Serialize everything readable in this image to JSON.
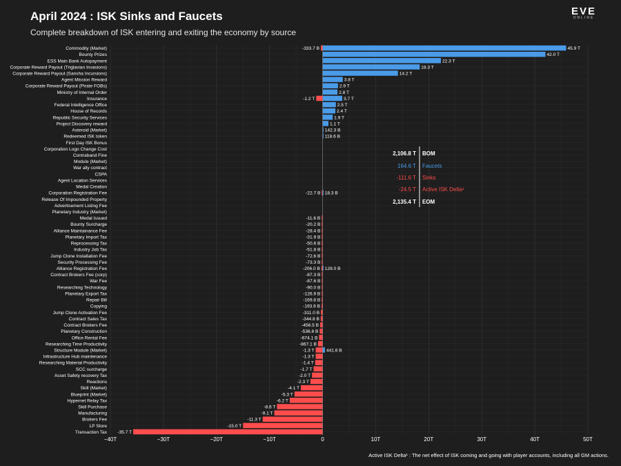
{
  "header": {
    "title": "April 2024 : ISK Sinks and Faucets",
    "subtitle": "Complete breakdown of ISK entering and exiting the economy by source",
    "logo": "EVE ONLINE"
  },
  "summary": [
    {
      "value": "2,106.8 T",
      "label": "BOM",
      "color": "#ffffff",
      "bold": true
    },
    {
      "value": "164.6 T",
      "label": "Faucets",
      "color": "#4a9be8",
      "bold": false
    },
    {
      "value": "-111.6 T",
      "label": "Sinks",
      "color": "#ff4d4d",
      "bold": false
    },
    {
      "value": "-24.5 T",
      "label": "Active ISK Delta¹",
      "color": "#ff4d4d",
      "bold": false
    },
    {
      "value": "2,135.4 T",
      "label": "EOM",
      "color": "#ffffff",
      "bold": true
    }
  ],
  "footnote": "Active ISK Delta¹ : The net effect of ISK coming and going with player accounts, including all GM actions.",
  "chart_data": {
    "type": "bar",
    "orientation": "horizontal",
    "title": "April 2024 : ISK Sinks and Faucets",
    "unit": "T",
    "xlim": [
      -40,
      50
    ],
    "xticks": [
      -40,
      -30,
      -20,
      -10,
      0,
      10,
      20,
      30,
      40,
      50
    ],
    "xtick_labels": [
      "−40T",
      "−30T",
      "−20T",
      "−10T",
      "0",
      "10T",
      "20T",
      "30T",
      "40T",
      "50T"
    ],
    "grid": true,
    "colors": {
      "faucet": "#4a9be8",
      "sink": "#ff4d4d"
    },
    "categories": [
      {
        "name": "Commodity (Market)",
        "neg": -0.3337,
        "negLabel": "-333.7 B",
        "pos": 45.9,
        "posLabel": "45.9 T"
      },
      {
        "name": "Bounty Prizes",
        "pos": 42.0,
        "posLabel": "42.0 T"
      },
      {
        "name": "ESS Main Bank Autopayment",
        "pos": 22.3,
        "posLabel": "22.3 T"
      },
      {
        "name": "Corporate Reward Payout (Triglavian Invasions)",
        "pos": 18.3,
        "posLabel": "18.3 T"
      },
      {
        "name": "Corporate Reward Payout (Sansha Incursions)",
        "pos": 14.2,
        "posLabel": "14.2 T"
      },
      {
        "name": "Agent Mission Reward",
        "pos": 3.8,
        "posLabel": "3.8 T"
      },
      {
        "name": "Corporate Reward Payout (Pirate FOBs)",
        "pos": 2.9,
        "posLabel": "2.9 T"
      },
      {
        "name": "Ministry of Internal Order",
        "pos": 2.8,
        "posLabel": "2.8 T"
      },
      {
        "name": "Insurance",
        "neg": -1.2,
        "negLabel": "-1.2 T",
        "pos": 3.7,
        "posLabel": "3.7 T"
      },
      {
        "name": "Federal Intelligence Office",
        "pos": 2.5,
        "posLabel": "2.5 T"
      },
      {
        "name": "House of Records",
        "pos": 2.4,
        "posLabel": "2.4 T"
      },
      {
        "name": "Republic Security Services",
        "pos": 1.9,
        "posLabel": "1.9 T"
      },
      {
        "name": "Project Discovery reward",
        "pos": 1.1,
        "posLabel": "1.1 T"
      },
      {
        "name": "Asteroid (Market)",
        "pos": 0.1423,
        "posLabel": "142.3 B"
      },
      {
        "name": "Redeemed ISK token",
        "pos": 0.1186,
        "posLabel": "118.6 B"
      },
      {
        "name": "First Day ISK Bonus"
      },
      {
        "name": "Corporation Logo Change Cost"
      },
      {
        "name": "Contraband Fine"
      },
      {
        "name": "Module (Market)"
      },
      {
        "name": "War ally contract"
      },
      {
        "name": "CSPA"
      },
      {
        "name": "Agent Location Services"
      },
      {
        "name": "Medal Creation"
      },
      {
        "name": "Corporation Registration Fee",
        "neg": -0.0227,
        "negLabel": "-22.7 B",
        "pos": 0.0183,
        "posLabel": "18.3 B"
      },
      {
        "name": "Release Of Impounded Property"
      },
      {
        "name": "Advertisement Listing Fee"
      },
      {
        "name": "Planetary Industry (Market)"
      },
      {
        "name": "Medal Issued",
        "neg": -0.0116,
        "negLabel": "-11.6 B"
      },
      {
        "name": "Bounty Surcharge",
        "neg": -0.0202,
        "negLabel": "-20.2 B"
      },
      {
        "name": "Alliance Maintainance Fee",
        "neg": -0.0284,
        "negLabel": "-28.4 B"
      },
      {
        "name": "Planetary Import Tax",
        "neg": -0.0319,
        "negLabel": "-31.9 B"
      },
      {
        "name": "Reprocessing Tax",
        "neg": -0.0506,
        "negLabel": "-50.6 B"
      },
      {
        "name": "Industry Job Tax",
        "neg": -0.0518,
        "negLabel": "-51.8 B"
      },
      {
        "name": "Jump Clone Installation Fee",
        "neg": -0.0726,
        "negLabel": "-72.6 B"
      },
      {
        "name": "Security Processing Fee",
        "neg": -0.0733,
        "negLabel": "-73.3 B"
      },
      {
        "name": "Alliance Registration Fee",
        "neg": -0.206,
        "negLabel": "-206.0 B",
        "pos": 0.128,
        "posLabel": "128.0 B"
      },
      {
        "name": "Contract Brokers Fee (corp)",
        "neg": -0.0873,
        "negLabel": "-87.3 B"
      },
      {
        "name": "War Fee",
        "neg": -0.0876,
        "negLabel": "-87.6 B"
      },
      {
        "name": "Researching Technology",
        "neg": -0.09,
        "negLabel": "-90.0 B"
      },
      {
        "name": "Planetary Export Tax",
        "neg": -0.1269,
        "negLabel": "-126.9 B"
      },
      {
        "name": "Repair Bill",
        "neg": -0.1698,
        "negLabel": "-169.8 B"
      },
      {
        "name": "Copying",
        "neg": -0.1939,
        "negLabel": "-193.9 B"
      },
      {
        "name": "Jump Clone Activation Fee",
        "neg": -0.311,
        "negLabel": "-311.0 B"
      },
      {
        "name": "Contract Sales Tax",
        "neg": -0.3448,
        "negLabel": "-344.8 B"
      },
      {
        "name": "Contract Brokers Fee",
        "neg": -0.4565,
        "negLabel": "-456.5 B"
      },
      {
        "name": "Planetary Construction",
        "neg": -0.5368,
        "negLabel": "-536.8 B"
      },
      {
        "name": "Office Rental Fee",
        "neg": -0.6741,
        "negLabel": "-674.1 B"
      },
      {
        "name": "Researching Time Productivity",
        "neg": -0.8671,
        "negLabel": "-867.1 B"
      },
      {
        "name": "Structure Module (Market)",
        "neg": -1.3,
        "negLabel": "-1.3 T",
        "pos": 0.4416,
        "posLabel": "441.6 B"
      },
      {
        "name": "Infrastructure Hub maintenance",
        "neg": -1.3,
        "negLabel": "-1.3 T"
      },
      {
        "name": "Researching Material Productivity",
        "neg": -1.4,
        "negLabel": "-1.4 T"
      },
      {
        "name": "SCC surcharge",
        "neg": -1.7,
        "negLabel": "-1.7 T"
      },
      {
        "name": "Asset Safety recovery Tax",
        "neg": -2.0,
        "negLabel": "-2.0 T"
      },
      {
        "name": "Reactions",
        "neg": -2.3,
        "negLabel": "-2.3 T"
      },
      {
        "name": "Skill (Market)",
        "neg": -4.1,
        "negLabel": "-4.1 T"
      },
      {
        "name": "Blueprint (Market)",
        "neg": -5.3,
        "negLabel": "-5.3 T"
      },
      {
        "name": "Hypernet Relay Tax",
        "neg": -6.2,
        "negLabel": "-6.2 T"
      },
      {
        "name": "Skill Purchase",
        "neg": -8.6,
        "negLabel": "-8.6 T"
      },
      {
        "name": "Manufacturing",
        "neg": -9.1,
        "negLabel": "-9.1 T"
      },
      {
        "name": "Brokers Fee",
        "neg": -11.3,
        "negLabel": "-11.3 T"
      },
      {
        "name": "LP Store",
        "neg": -15.0,
        "negLabel": "-15.0 T"
      },
      {
        "name": "Transaction Tax",
        "neg": -35.7,
        "negLabel": "-35.7 T"
      }
    ]
  }
}
